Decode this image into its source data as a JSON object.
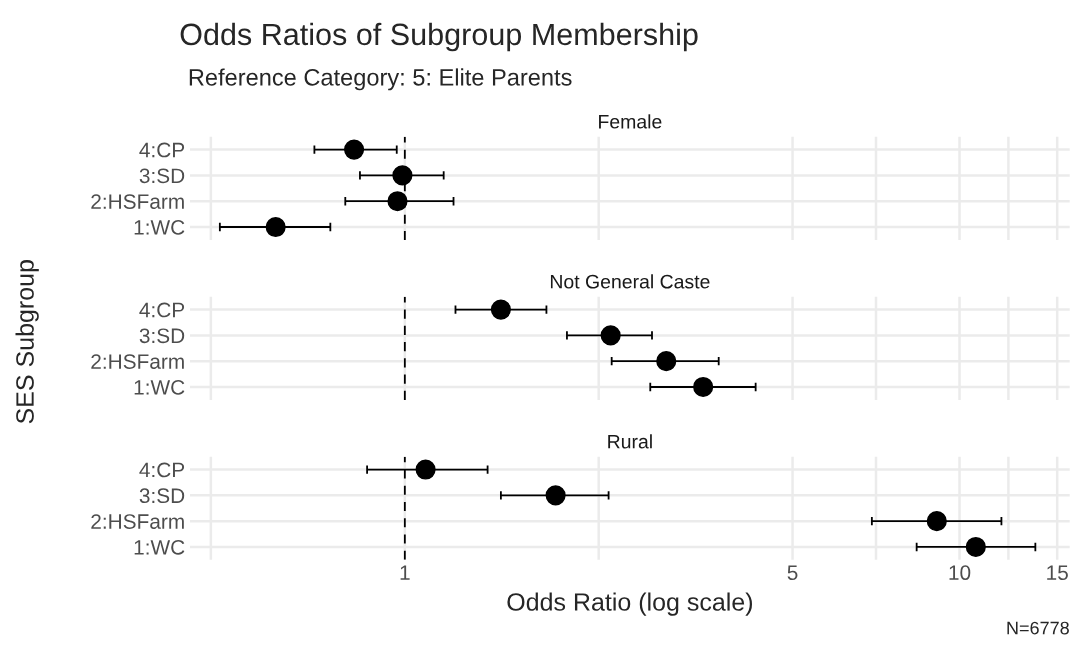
{
  "chart_data": [
    {
      "type": "other",
      "title": "Odds Ratios of Subgroup Membership",
      "subtitle": "Reference Category: 5: Elite Parents"
    },
    {
      "type": "scatter",
      "title": "Female",
      "orientation": "horizontal",
      "categories": [
        "4:CP",
        "3:SD",
        "2:HSFarm",
        "1:WC"
      ],
      "values": [
        0.81,
        0.99,
        0.97,
        0.585
      ],
      "errors": [
        [
          0.687,
          0.967
        ],
        [
          0.83,
          1.175
        ],
        [
          0.781,
          1.224
        ],
        [
          0.464,
          0.734
        ]
      ],
      "color": "#000000",
      "marker": "circle",
      "log": "x",
      "grid": true,
      "tick_labels": "y",
      "xlim": [
        0.41,
        15.8
      ],
      "xticks": [
        {
          "value": 0.447,
          "label": null
        },
        1,
        {
          "value": 2.236,
          "label": null
        },
        5,
        {
          "value": 7.07,
          "label": null
        },
        10,
        {
          "value": 12.25,
          "label": null
        },
        15
      ],
      "ref_lines": [
        {
          "axis": "x",
          "value": 1,
          "line_style": "dashed",
          "color": "#000000"
        }
      ]
    },
    {
      "type": "scatter",
      "title": "Not General Caste",
      "orientation": "horizontal",
      "categories": [
        "4:CP",
        "3:SD",
        "2:HSFarm",
        "1:WC"
      ],
      "values": [
        1.49,
        2.35,
        2.96,
        3.45
      ],
      "errors": [
        [
          1.234,
          1.8
        ],
        [
          1.96,
          2.79
        ],
        [
          2.36,
          3.68
        ],
        [
          2.77,
          4.29
        ]
      ],
      "color": "#000000",
      "marker": "circle",
      "log": "x",
      "grid": true,
      "tick_labels": "y",
      "ylabel": "SES Subgroup",
      "xlim": [
        0.41,
        15.8
      ],
      "xticks": [
        {
          "value": 0.447,
          "label": null
        },
        1,
        {
          "value": 2.236,
          "label": null
        },
        5,
        {
          "value": 7.07,
          "label": null
        },
        10,
        {
          "value": 12.25,
          "label": null
        },
        15
      ],
      "ref_lines": [
        {
          "axis": "x",
          "value": 1,
          "line_style": "dashed",
          "color": "#000000"
        }
      ]
    },
    {
      "type": "scatter",
      "title": "Rural",
      "orientation": "horizontal",
      "categories": [
        "4:CP",
        "3:SD",
        "2:HSFarm",
        "1:WC"
      ],
      "values": [
        1.09,
        1.87,
        9.1,
        10.7
      ],
      "errors": [
        [
          0.855,
          1.41
        ],
        [
          1.49,
          2.33
        ],
        [
          6.95,
          11.9
        ],
        [
          8.37,
          13.7
        ]
      ],
      "color": "#000000",
      "marker": "circle",
      "log": "x",
      "grid": true,
      "xlabel": "Odds Ratio (log scale)",
      "annotations": [
        "N=6778"
      ],
      "xlim": [
        0.41,
        15.8
      ],
      "xticks": [
        {
          "value": 0.447,
          "label": null
        },
        1,
        {
          "value": 2.236,
          "label": null
        },
        5,
        {
          "value": 7.07,
          "label": null
        },
        10,
        {
          "value": 12.25,
          "label": null
        },
        15
      ],
      "ref_lines": [
        {
          "axis": "x",
          "value": 1,
          "line_style": "dashed",
          "color": "#000000"
        }
      ]
    }
  ]
}
